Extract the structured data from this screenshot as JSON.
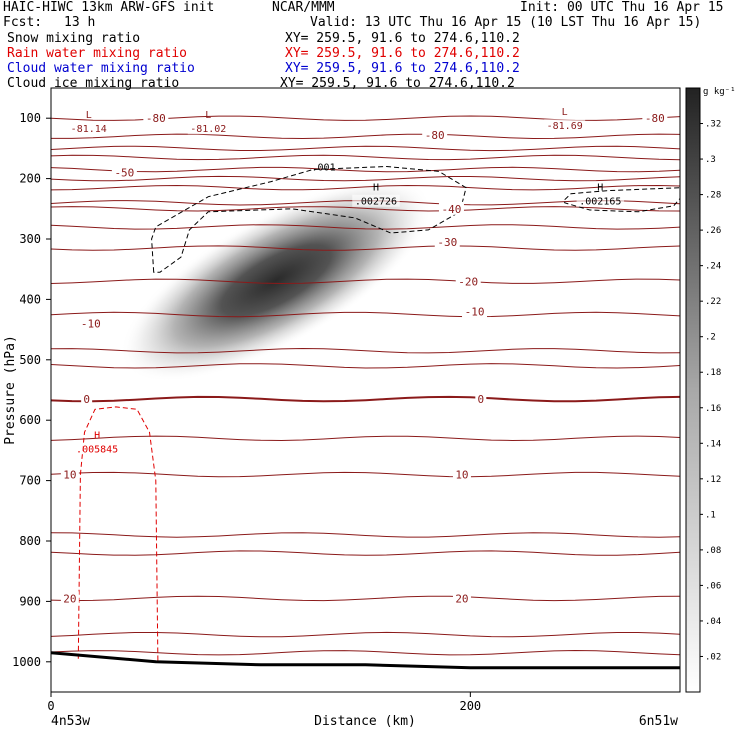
{
  "header": {
    "title": "HAIC-HIWC 13km ARW-GFS init",
    "org": "NCAR/MMM",
    "init": "Init: 00 UTC Thu 16 Apr 15",
    "fcst_label": "Fcst:",
    "fcst_value": "13 h",
    "valid": "Valid: 13 UTC Thu 16 Apr 15 (10 LST Thu 16 Apr 15)"
  },
  "fields": [
    {
      "label": "Snow mixing ratio",
      "xy": "XY= 259.5, 91.6 to 274.6,110.2",
      "color": "#000000"
    },
    {
      "label": "Rain water mixing ratio",
      "xy": "XY= 259.5, 91.6 to 274.6,110.2",
      "color": "#e00000"
    },
    {
      "label": "Cloud water mixing ratio",
      "xy": "XY= 259.5, 91.6 to 274.6,110.2",
      "color": "#0000d0"
    },
    {
      "label": "Cloud ice mixing ratio",
      "xy": "XY= 259.5, 91.6 to 274.6,110.2",
      "color": "#000000"
    }
  ],
  "colors": {
    "temperature": "#8b1a1a",
    "rain": "#e00000",
    "ice": "#000000",
    "terrain": "#000000"
  },
  "chart_data": {
    "type": "heatmap",
    "title": "",
    "xlabel": "Distance (km)",
    "ylabel": "Pressure (hPa)",
    "xlim": [
      0,
      300
    ],
    "ylim": [
      1050,
      50
    ],
    "x_ticks": [
      0,
      200
    ],
    "y_ticks": [
      100,
      200,
      300,
      400,
      500,
      600,
      700,
      800,
      900,
      1000
    ],
    "x_endpoints": [
      "4n53w",
      "6n51w"
    ],
    "colorbar": {
      "unit": "g kg⁻¹",
      "labels": [
        ".02",
        ".04",
        ".06",
        ".08",
        ".1",
        ".12",
        ".14",
        ".16",
        ".18",
        ".2",
        ".22",
        ".24",
        ".26",
        ".28",
        ".3",
        ".32"
      ],
      "range": [
        0,
        0.34
      ]
    },
    "snow_max": {
      "x": 105,
      "p": 360,
      "value": 0.32
    },
    "isotherms": [
      {
        "p": 100
      },
      {
        "p": 130
      },
      {
        "p": 150
      },
      {
        "p": 165
      },
      {
        "p": 185
      },
      {
        "p": 200
      },
      {
        "p": 215
      },
      {
        "p": 240
      },
      {
        "p": 250
      },
      {
        "p": 280
      },
      {
        "p": 315
      },
      {
        "p": 370
      },
      {
        "p": 425
      },
      {
        "p": 485
      },
      {
        "p": 510
      },
      {
        "p": 565,
        "bold": true
      },
      {
        "p": 630
      },
      {
        "p": 690
      },
      {
        "p": 790
      },
      {
        "p": 820
      },
      {
        "p": 895
      },
      {
        "p": 955
      },
      {
        "p": 985
      }
    ],
    "temp_labels": [
      {
        "text": "-80",
        "x": 50,
        "p": 100
      },
      {
        "text": "-80",
        "x": 183,
        "p": 128
      },
      {
        "text": "-80",
        "x": 288,
        "p": 100
      },
      {
        "text": "-50",
        "x": 35,
        "p": 190
      },
      {
        "text": "-40",
        "x": 191,
        "p": 250
      },
      {
        "text": "-30",
        "x": 189,
        "p": 305
      },
      {
        "text": "-20",
        "x": 199,
        "p": 370
      },
      {
        "text": "-10",
        "x": 19,
        "p": 440
      },
      {
        "text": "0",
        "x": 17,
        "p": 565
      },
      {
        "text": "0",
        "x": 205,
        "p": 565
      },
      {
        "text": "-10",
        "x": 202,
        "p": 420
      },
      {
        "text": "10",
        "x": 9,
        "p": 690
      },
      {
        "text": "10",
        "x": 196,
        "p": 690
      },
      {
        "text": "20",
        "x": 9,
        "p": 895
      },
      {
        "text": "20",
        "x": 196,
        "p": 895
      }
    ],
    "highs_lows": [
      {
        "type": "L",
        "value": "-81.14",
        "x": 18,
        "p": 110,
        "color": "#8b1a1a"
      },
      {
        "type": "L",
        "value": "-81.02",
        "x": 75,
        "p": 110,
        "color": "#8b1a1a"
      },
      {
        "type": "L",
        "value": "-81.69",
        "x": 245,
        "p": 105,
        "color": "#8b1a1a"
      },
      {
        "type": "H",
        "value": ".002726",
        "x": 155,
        "p": 230,
        "color": "#000000"
      },
      {
        "type": "H",
        "value": ".002165",
        "x": 262,
        "p": 230,
        "color": "#000000"
      },
      {
        "type": "H",
        "value": ".005845",
        "x": 22,
        "p": 640,
        "color": "#e00000"
      }
    ],
    "ice_contour_label": {
      "text": ".001",
      "x": 130,
      "p": 180
    },
    "ice_contours": [
      [
        [
          49,
          355
        ],
        [
          48,
          300
        ],
        [
          50,
          280
        ],
        [
          75,
          230
        ],
        [
          105,
          205
        ],
        [
          125,
          185
        ],
        [
          160,
          180
        ],
        [
          185,
          188
        ],
        [
          198,
          215
        ],
        [
          195,
          255
        ],
        [
          180,
          285
        ],
        [
          162,
          290
        ],
        [
          145,
          265
        ],
        [
          115,
          250
        ],
        [
          75,
          255
        ],
        [
          66,
          285
        ],
        [
          62,
          330
        ],
        [
          52,
          355
        ]
      ],
      [
        [
          245,
          235
        ],
        [
          248,
          225
        ],
        [
          265,
          220
        ],
        [
          300,
          215
        ],
        [
          302,
          225
        ],
        [
          297,
          245
        ],
        [
          280,
          255
        ],
        [
          257,
          252
        ],
        [
          245,
          240
        ]
      ]
    ],
    "rain_contour": [
      [
        13,
        995
      ],
      [
        14,
        690
      ],
      [
        16,
        620
      ],
      [
        21,
        582
      ],
      [
        31,
        578
      ],
      [
        41,
        582
      ],
      [
        47,
        620
      ],
      [
        50,
        700
      ],
      [
        51,
        1000
      ]
    ],
    "terrain": [
      [
        0,
        985
      ],
      [
        50,
        1000
      ],
      [
        100,
        1005
      ],
      [
        150,
        1005
      ],
      [
        200,
        1010
      ],
      [
        250,
        1010
      ],
      [
        300,
        1010
      ]
    ]
  }
}
